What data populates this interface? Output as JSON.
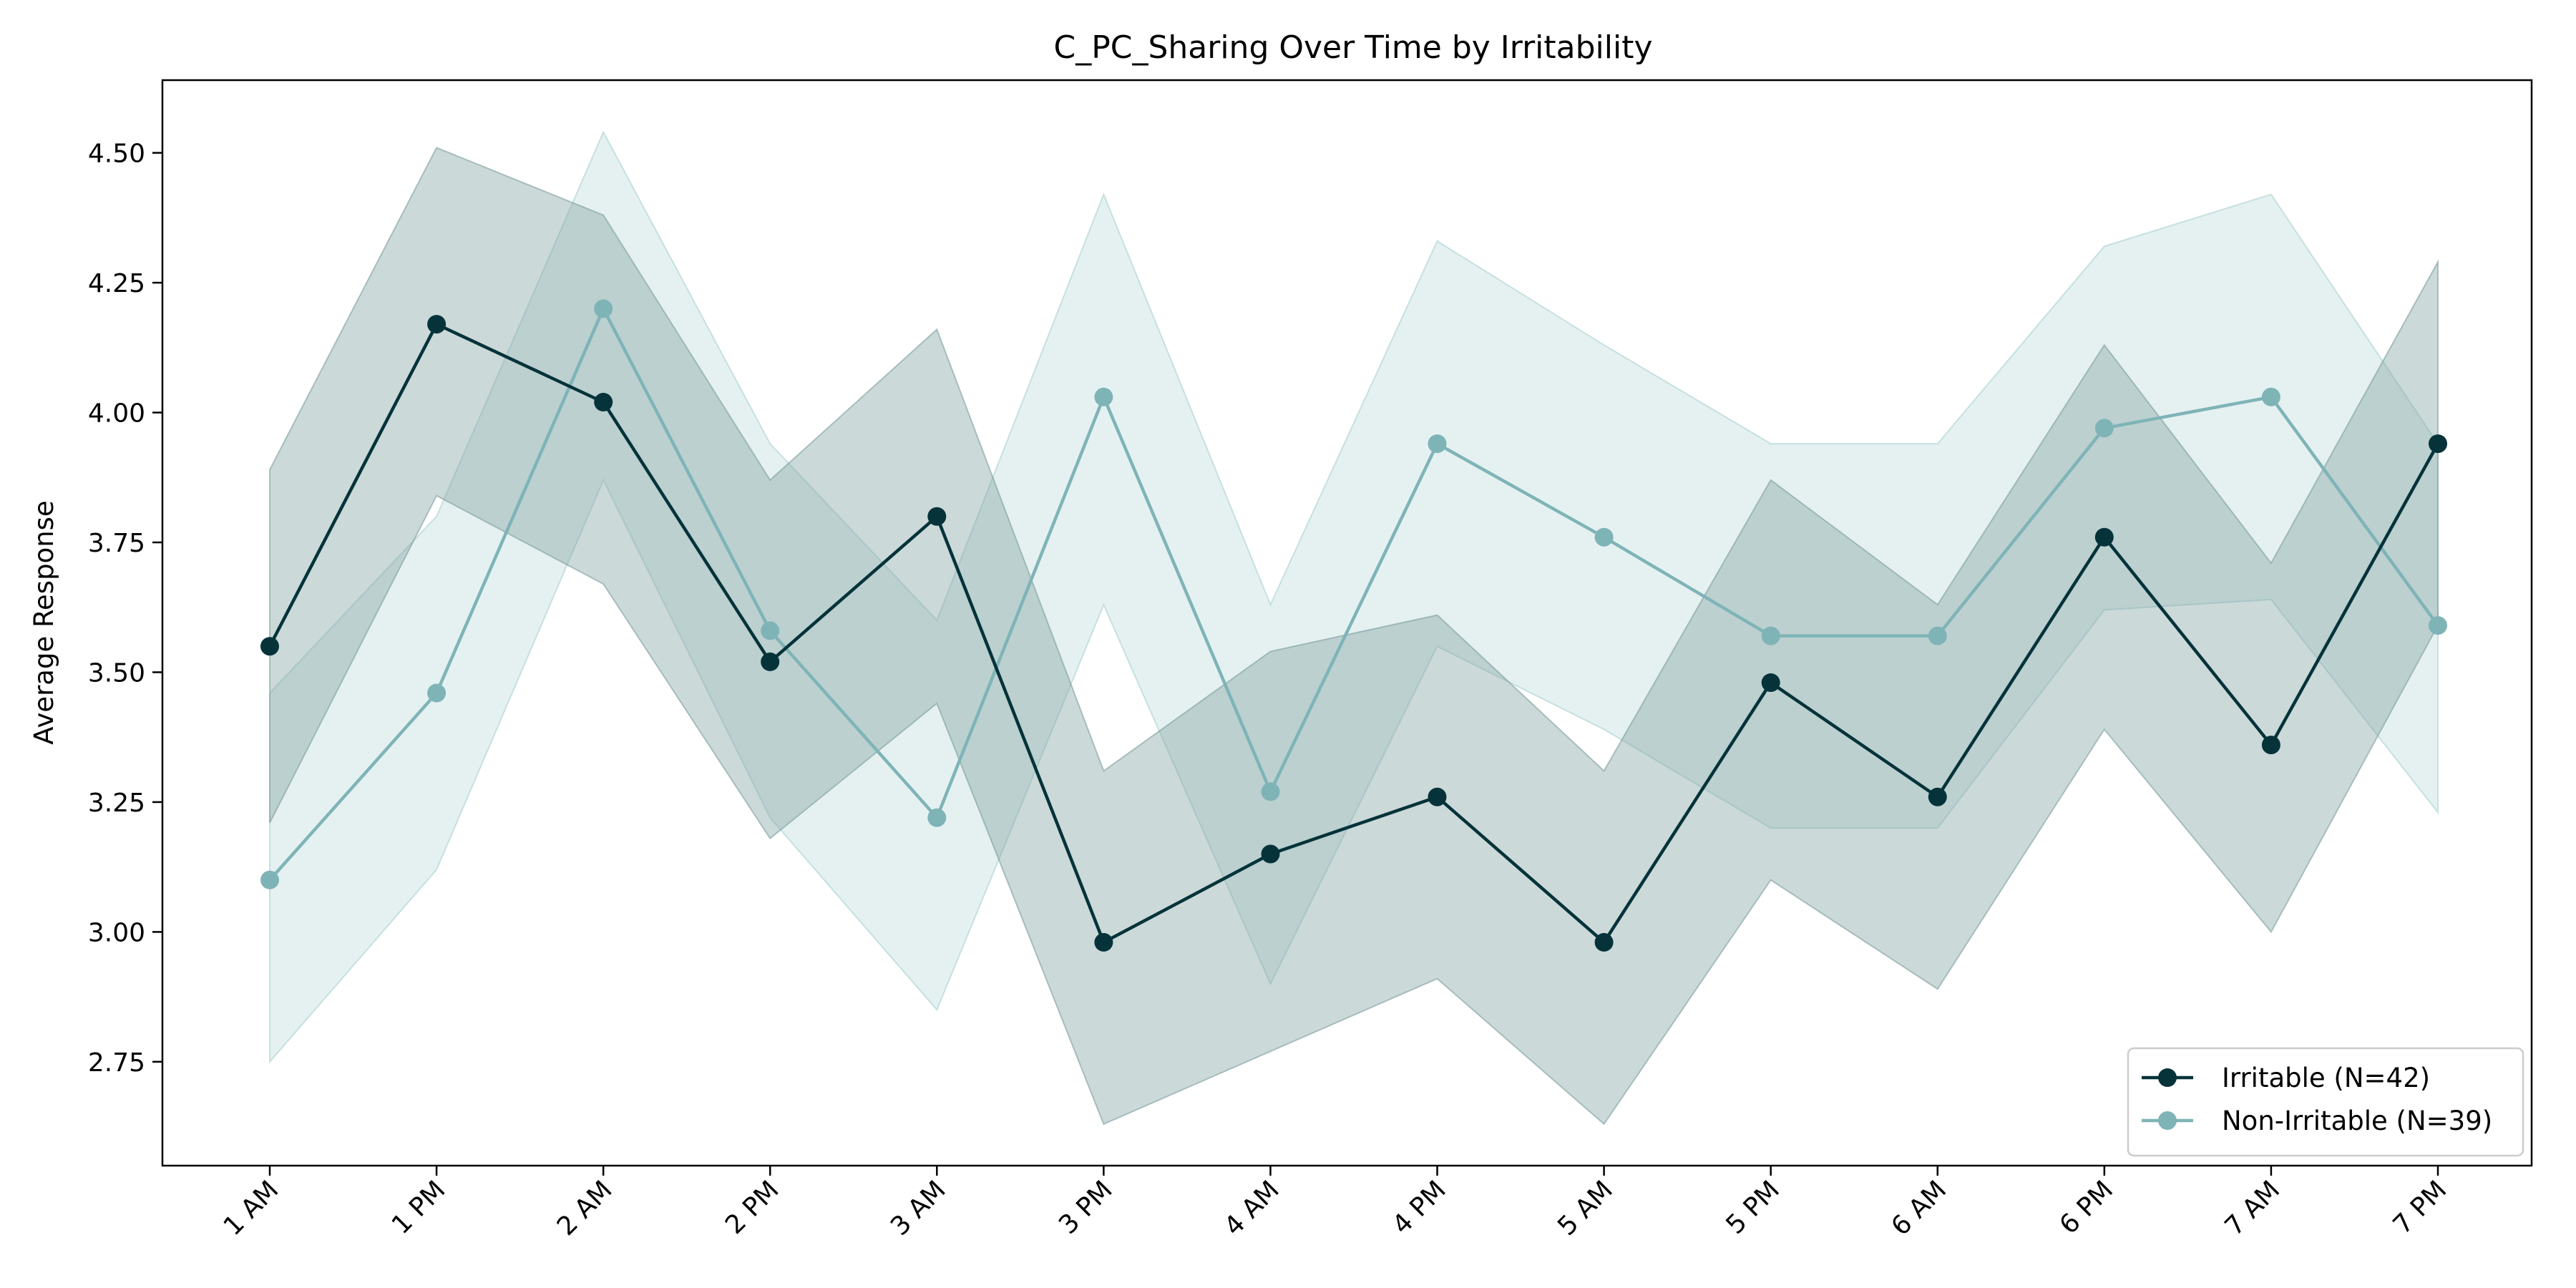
{
  "chart_data": {
    "type": "line",
    "title": "C_PC_Sharing Over Time by Irritability",
    "xlabel": "",
    "ylabel": "Average Response",
    "categories": [
      "1 AM",
      "1 PM",
      "2 AM",
      "2 PM",
      "3 AM",
      "3 PM",
      "4 AM",
      "4 PM",
      "5 AM",
      "5 PM",
      "6 AM",
      "6 PM",
      "7 AM",
      "7 PM"
    ],
    "ylim": [
      2.55,
      4.64
    ],
    "yticks": [
      "2.75",
      "3.00",
      "3.25",
      "3.50",
      "3.75",
      "4.00",
      "4.25",
      "4.50"
    ],
    "grid": false,
    "legend_position": "lower-right",
    "series": [
      {
        "name": "Irritable (N=42)",
        "color": "#06333a",
        "band_color": "#7f9f9f",
        "values": [
          3.55,
          4.17,
          4.02,
          3.52,
          3.8,
          2.98,
          3.15,
          3.26,
          2.98,
          3.48,
          3.26,
          3.76,
          3.36,
          3.94
        ],
        "upper": [
          3.89,
          4.51,
          4.38,
          3.87,
          4.16,
          3.31,
          3.54,
          3.61,
          3.31,
          3.87,
          3.63,
          4.13,
          3.71,
          4.29
        ],
        "lower": [
          3.21,
          3.84,
          3.67,
          3.18,
          3.44,
          2.63,
          2.77,
          2.91,
          2.63,
          3.1,
          2.89,
          3.39,
          3.0,
          3.59
        ]
      },
      {
        "name": "Non-Irritable (N=39)",
        "color": "#7fb4b7",
        "band_color": "#a9d1d1",
        "values": [
          3.1,
          3.46,
          4.2,
          3.58,
          3.22,
          4.03,
          3.27,
          3.94,
          3.76,
          3.57,
          3.57,
          3.97,
          4.03,
          3.59
        ],
        "upper": [
          3.46,
          3.8,
          4.54,
          3.94,
          3.6,
          4.42,
          3.63,
          4.33,
          4.13,
          3.94,
          3.94,
          4.32,
          4.42,
          3.94
        ],
        "lower": [
          2.75,
          3.12,
          3.87,
          3.22,
          2.85,
          3.63,
          2.9,
          3.55,
          3.39,
          3.2,
          3.2,
          3.62,
          3.64,
          3.23
        ]
      }
    ]
  }
}
